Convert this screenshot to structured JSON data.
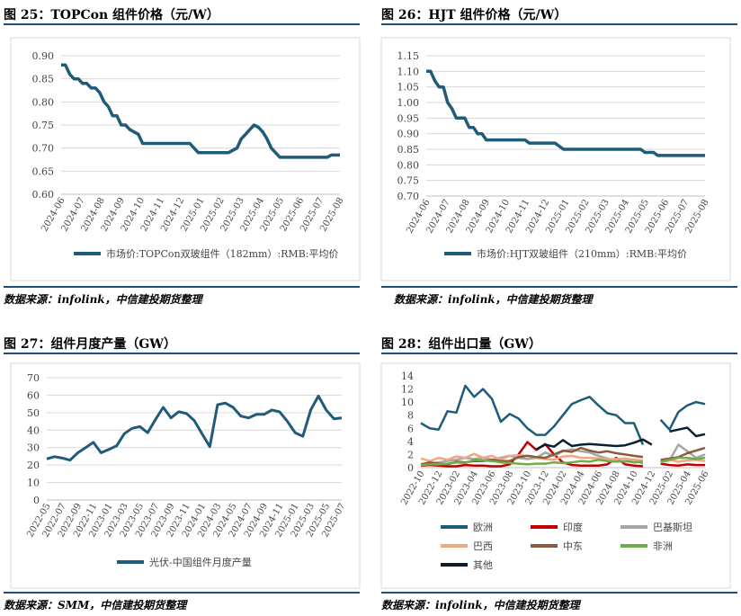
{
  "figures": [
    {
      "title": "图 25：TOPCon 组件价格（元/W）",
      "source": "数据来源：infolink，中信建投期货整理"
    },
    {
      "title": "图 26：HJT 组件价格（元/W）",
      "source": "数据来源：infolink，中信建投期货整理"
    },
    {
      "title": "图 27：组件月度产量（GW）",
      "source": "数据来源：SMM，中信建投期货整理"
    },
    {
      "title": "图 28：组件出口量（GW）",
      "source": "数据来源：infolink，中信建投期货整理"
    }
  ],
  "chart_data": [
    {
      "type": "line",
      "title": "图 25：TOPCon 组件价格（元/W）",
      "x_ticks": [
        "2024-06",
        "2024-07",
        "2024-08",
        "2024-09",
        "2024-10",
        "2024-11",
        "2024-12",
        "2025-01",
        "2025-02",
        "2025-03",
        "2025-04",
        "2025-05",
        "2025-06",
        "2025-07",
        "2025-08"
      ],
      "ylim": [
        0.6,
        0.9
      ],
      "y_ticks": [
        "0.60",
        "0.65",
        "0.70",
        "0.75",
        "0.80",
        "0.85",
        "0.90"
      ],
      "grid": true,
      "legend": "bottom",
      "color": "#1f5c7a",
      "series": [
        {
          "name": "市场价:TOPCon双玻组件（182mm）:RMB:平均价",
          "values": [
            0.88,
            0.88,
            0.86,
            0.85,
            0.85,
            0.84,
            0.84,
            0.83,
            0.83,
            0.82,
            0.8,
            0.79,
            0.77,
            0.77,
            0.75,
            0.75,
            0.74,
            0.735,
            0.73,
            0.71,
            0.71,
            0.71,
            0.71,
            0.71,
            0.71,
            0.71,
            0.71,
            0.71,
            0.71,
            0.71,
            0.71,
            0.7,
            0.69,
            0.69,
            0.69,
            0.69,
            0.69,
            0.69,
            0.69,
            0.69,
            0.695,
            0.7,
            0.72,
            0.73,
            0.74,
            0.75,
            0.745,
            0.735,
            0.72,
            0.7,
            0.69,
            0.68,
            0.68,
            0.68,
            0.68,
            0.68,
            0.68,
            0.68,
            0.68,
            0.68,
            0.68,
            0.68,
            0.68,
            0.685,
            0.685,
            0.685
          ]
        }
      ]
    },
    {
      "type": "line",
      "title": "图 26：HJT 组件价格（元/W）",
      "x_ticks": [
        "2024-06",
        "2024-07",
        "2024-08",
        "2024-09",
        "2024-10",
        "2024-11",
        "2024-12",
        "2025-01",
        "2025-02",
        "2025-03",
        "2025-04",
        "2025-05",
        "2025-06",
        "2025-07",
        "2025-08"
      ],
      "ylim": [
        0.7,
        1.15
      ],
      "y_ticks": [
        "0.70",
        "0.75",
        "0.80",
        "0.85",
        "0.90",
        "0.95",
        "1.00",
        "1.05",
        "1.10",
        "1.15"
      ],
      "grid": true,
      "legend": "bottom",
      "color": "#1f5c7a",
      "series": [
        {
          "name": "市场价:HJT双玻组件（210mm）:RMB:平均价",
          "values": [
            1.1,
            1.1,
            1.07,
            1.05,
            1.05,
            1.0,
            0.98,
            0.95,
            0.95,
            0.95,
            0.92,
            0.92,
            0.9,
            0.9,
            0.88,
            0.88,
            0.88,
            0.88,
            0.88,
            0.88,
            0.88,
            0.88,
            0.88,
            0.88,
            0.87,
            0.87,
            0.87,
            0.87,
            0.87,
            0.87,
            0.87,
            0.86,
            0.85,
            0.85,
            0.85,
            0.85,
            0.85,
            0.85,
            0.85,
            0.85,
            0.85,
            0.85,
            0.85,
            0.85,
            0.85,
            0.85,
            0.85,
            0.85,
            0.85,
            0.85,
            0.85,
            0.84,
            0.84,
            0.84,
            0.83,
            0.83,
            0.83,
            0.83,
            0.83,
            0.83,
            0.83,
            0.83,
            0.83,
            0.83,
            0.83,
            0.83
          ]
        }
      ]
    },
    {
      "type": "line",
      "title": "图 27：组件月度产量（GW）",
      "categories": [
        "2022-05",
        "2022-06",
        "2022-07",
        "2022-08",
        "2022-09",
        "2022-10",
        "2022-11",
        "2022-12",
        "2023-01",
        "2023-02",
        "2023-03",
        "2023-04",
        "2023-05",
        "2023-06",
        "2023-07",
        "2023-08",
        "2023-09",
        "2023-10",
        "2023-11",
        "2023-12",
        "2024-01",
        "2024-02",
        "2024-03",
        "2024-04",
        "2024-05",
        "2024-06",
        "2024-07",
        "2024-08",
        "2024-09",
        "2024-10",
        "2024-11",
        "2024-12",
        "2025-01",
        "2025-02",
        "2025-03",
        "2025-04",
        "2025-05",
        "2025-06",
        "2025-07"
      ],
      "x_ticks": [
        "2022-05",
        "2022-07",
        "2022-09",
        "2022-11",
        "2023-01",
        "2023-03",
        "2023-05",
        "2023-07",
        "2023-09",
        "2023-11",
        "2024-01",
        "2024-03",
        "2024-05",
        "2024-07",
        "2024-09",
        "2024-11",
        "2025-01",
        "2025-03",
        "2025-05",
        "2025-07"
      ],
      "ylim": [
        0,
        70
      ],
      "y_ticks": [
        "0",
        "10",
        "20",
        "30",
        "40",
        "50",
        "60",
        "70"
      ],
      "grid": true,
      "legend": "bottom",
      "color": "#1f5c7a",
      "series": [
        {
          "name": "光伏-中国组件月度产量",
          "values": [
            23.5,
            24.8,
            24,
            22.8,
            27,
            30,
            33,
            27,
            29,
            31,
            38,
            41,
            42,
            38.5,
            46,
            53,
            47,
            50.5,
            49.5,
            45.5,
            38,
            30.5,
            54.5,
            55.5,
            53,
            48,
            47,
            49,
            49,
            51.5,
            50.5,
            45,
            38.5,
            36.5,
            51.5,
            59.5,
            51.5,
            46.5,
            47
          ]
        }
      ]
    },
    {
      "type": "line",
      "title": "图 28：组件出口量（GW）",
      "categories": [
        "2022-10",
        "2022-11",
        "2022-12",
        "2023-01",
        "2023-02",
        "2023-03",
        "2023-04",
        "2023-05",
        "2023-06",
        "2023-07",
        "2023-08",
        "2023-09",
        "2023-10",
        "2023-11",
        "2023-12",
        "2024-01",
        "2024-02",
        "2024-03",
        "2024-04",
        "2024-05",
        "2024-06",
        "2024-07",
        "2024-08",
        "2024-09",
        "2024-10",
        "2024-11",
        "2024-12",
        "2025-01",
        "2025-02",
        "2025-03",
        "2025-04",
        "2025-05",
        "2025-06"
      ],
      "x_ticks": [
        "2022-10",
        "2022-12",
        "2023-02",
        "2023-04",
        "2023-06",
        "2023-08",
        "2023-10",
        "2023-12",
        "2024-02",
        "2024-04",
        "2024-06",
        "2024-08",
        "2024-10",
        "2024-12",
        "2025-02",
        "2025-04",
        "2025-06"
      ],
      "ylim": [
        0,
        14
      ],
      "y_ticks": [
        "0",
        "2",
        "4",
        "6",
        "8",
        "10",
        "12",
        "14"
      ],
      "grid": false,
      "legend": "bottom",
      "series": [
        {
          "name": "欧洲",
          "color": "#1f5c7a",
          "values": [
            6.8,
            6,
            5.8,
            8.6,
            8.4,
            12.5,
            10.8,
            12,
            10.5,
            7,
            8.2,
            7.5,
            6,
            5,
            5,
            6.3,
            8,
            9.7,
            10.3,
            10.8,
            9.5,
            8.3,
            8,
            6.8,
            6.8,
            3.5,
            null,
            7.3,
            5.8,
            8.5,
            9.5,
            10,
            9.7
          ]
        },
        {
          "name": "印度",
          "color": "#c00000",
          "values": [
            0.3,
            0.4,
            0.3,
            0.2,
            0.2,
            0.4,
            0.3,
            0.3,
            0.2,
            0.2,
            0.5,
            2,
            3.9,
            2.7,
            3.6,
            2,
            0.8,
            0.4,
            0.3,
            0.3,
            0.3,
            0.5,
            1.5,
            0.5,
            0.3,
            0.2,
            null,
            0.6,
            0.4,
            0.3,
            0.5,
            0.4,
            0.4
          ]
        },
        {
          "name": "巴基斯坦",
          "color": "#a6a6a6",
          "values": [
            0.5,
            0.7,
            0.8,
            1,
            1.2,
            1.5,
            1.3,
            1.5,
            1.2,
            1.5,
            1.8,
            1.5,
            1.3,
            1.5,
            2.3,
            1.8,
            2.5,
            2.8,
            2.5,
            2.3,
            1.8,
            1.4,
            1,
            0.9,
            1.2,
            0.6,
            null,
            0.8,
            1.1,
            3.5,
            2.5,
            1.5,
            2
          ]
        },
        {
          "name": "巴西",
          "color": "#f4a582",
          "values": [
            1.4,
            1,
            1.5,
            1.2,
            1.7,
            1.5,
            2.1,
            1.5,
            1.8,
            1.2,
            1.8,
            1.9,
            1.8,
            1.5,
            1.3,
            1.2,
            1.7,
            1.8,
            1.5,
            1.5,
            1.4,
            1.3,
            1.3,
            1.4,
            1.2,
            1.1,
            null,
            0.8,
            1.2,
            0.9,
            1.1,
            1.2,
            1
          ]
        },
        {
          "name": "中东",
          "color": "#8c5a3c",
          "values": [
            0.5,
            0.8,
            0.6,
            0.5,
            0.9,
            0.8,
            1,
            1,
            1.2,
            1,
            1,
            1.6,
            1.8,
            1.6,
            1.5,
            2,
            2.6,
            2.4,
            3,
            2.6,
            2.3,
            2.5,
            2.2,
            2,
            1.8,
            1.6,
            null,
            1.2,
            1.4,
            1.6,
            2.2,
            2.6,
            3
          ]
        },
        {
          "name": "非洲",
          "color": "#70ad47",
          "values": [
            0.4,
            0.5,
            0.5,
            0.6,
            0.8,
            0.7,
            1.2,
            1.1,
            1,
            0.8,
            0.7,
            0.6,
            0.5,
            0.6,
            0.6,
            0.8,
            0.7,
            0.8,
            1,
            0.9,
            1.2,
            1,
            0.9,
            1,
            0.8,
            0.9,
            null,
            0.9,
            1.2,
            1.5,
            1.5,
            1.3,
            1.5
          ]
        },
        {
          "name": "其他",
          "color": "#0d1f2d",
          "values": [
            null,
            null,
            null,
            null,
            null,
            null,
            null,
            null,
            null,
            null,
            null,
            null,
            null,
            2.8,
            3.5,
            3.2,
            4.2,
            3.3,
            3.5,
            3.6,
            3.5,
            3.4,
            3.3,
            3.4,
            3.8,
            4.3,
            3.5,
            null,
            5.5,
            5.8,
            6.1,
            4.8,
            5.1
          ]
        }
      ]
    }
  ]
}
